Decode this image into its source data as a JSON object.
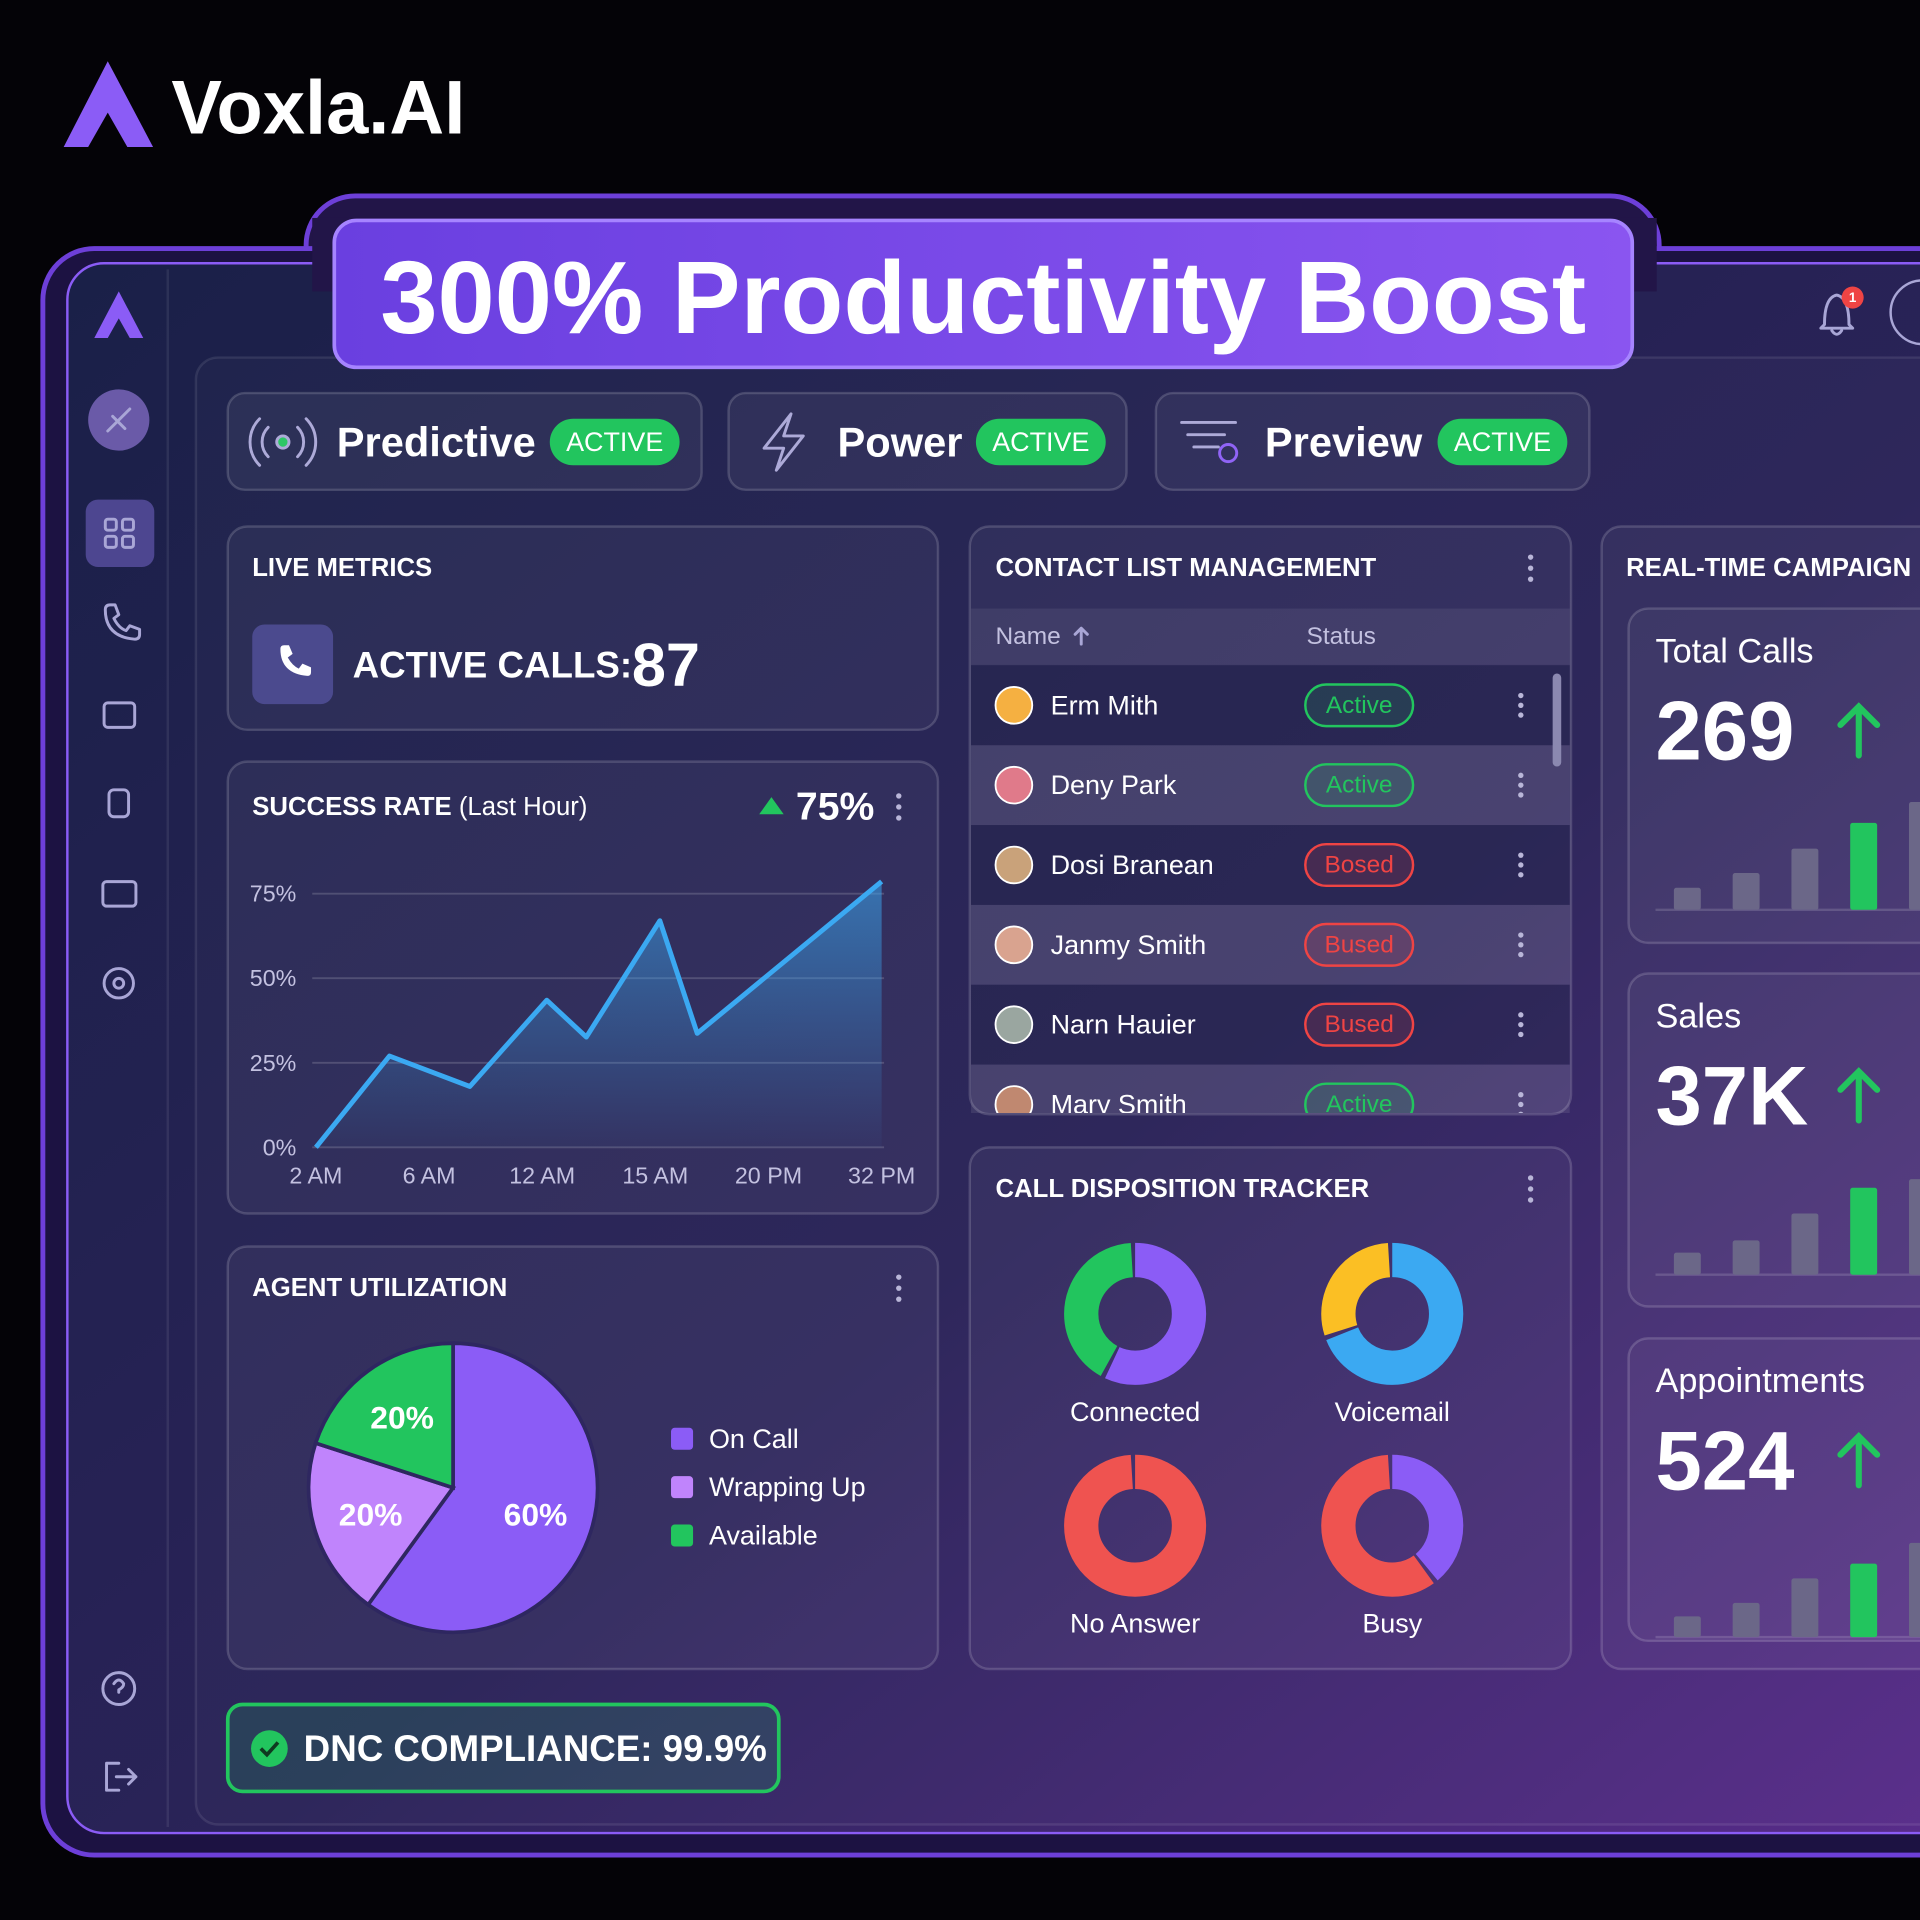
{
  "brand": "Voxla.AI",
  "banner": "300% Productivity Boost",
  "notifications": 1,
  "modes": [
    {
      "name": "Predictive",
      "status": "ACTIVE"
    },
    {
      "name": "Power",
      "status": "ACTIVE"
    },
    {
      "name": "Preview",
      "status": "ACTIVE"
    }
  ],
  "live_metrics": {
    "title": "LIVE METRICS",
    "label": "ACTIVE CALLS:",
    "value": 87
  },
  "contacts": {
    "title": "CONTACT LIST MANAGEMENT",
    "columns": [
      "Name",
      "Status"
    ],
    "rows": [
      {
        "name": "Erm Mith",
        "status": "Active",
        "color": "#22c55e"
      },
      {
        "name": "Deny Park",
        "status": "Active",
        "color": "#22c55e"
      },
      {
        "name": "Dosi Branean",
        "status": "Bosed",
        "color": "#ef4444"
      },
      {
        "name": "Janmy Smith",
        "status": "Bused",
        "color": "#ef4444"
      },
      {
        "name": "Narn Hauier",
        "status": "Bused",
        "color": "#ef4444"
      },
      {
        "name": "Mary Smith",
        "status": "Active",
        "color": "#22c55e"
      }
    ]
  },
  "campaign": {
    "title": "REAL-TIME CAMPAIGN",
    "stats": [
      {
        "label": "Total Calls",
        "value": 269,
        "ylim": [
          0,
          100
        ],
        "bars": [
          18,
          30,
          50,
          71,
          88
        ],
        "colors": [
          "#6b6788",
          "#6b6788",
          "#6b6788",
          "#22c55e",
          "#6b6788"
        ]
      },
      {
        "label": "Sales",
        "value": 37000,
        "value_label": "37K",
        "ylim": [
          0,
          100
        ],
        "bars": [
          18,
          28,
          50,
          71,
          78
        ],
        "colors": [
          "#6b6788",
          "#6b6788",
          "#6b6788",
          "#22c55e",
          "#6b6788"
        ]
      },
      {
        "label": "Appointments",
        "value": 524,
        "ylim": [
          0,
          100
        ],
        "bars": [
          17,
          28,
          48,
          60,
          77
        ],
        "colors": [
          "#6b6788",
          "#6b6788",
          "#6b6788",
          "#22c55e",
          "#6b6788"
        ]
      }
    ]
  },
  "dnc": "DNC COMPLIANCE: 99.9%",
  "chart_data": [
    {
      "type": "line",
      "title": "SUCCESS RATE",
      "subtitle": "(Last Hour)",
      "annotation": "75%",
      "x": [
        0,
        0.65,
        1.36,
        2.04,
        2.39,
        3.04,
        3.37,
        5
      ],
      "series": [
        {
          "color": "#3ba9f2",
          "values": [
            0,
            27,
            18,
            43.5,
            32.6,
            67,
            33.7,
            78.6
          ]
        }
      ],
      "xlim": [
        0,
        5
      ],
      "xticks": [
        {
          "value": 0,
          "label": "2 AM"
        },
        {
          "value": 1,
          "label": "6 AM"
        },
        {
          "value": 2,
          "label": "12 AM"
        },
        {
          "value": 3,
          "label": "15 AM"
        },
        {
          "value": 4,
          "label": "20 PM"
        },
        {
          "value": 5,
          "label": "32 PM"
        }
      ],
      "ylim": [
        0,
        80
      ],
      "yticks": [
        {
          "value": 0,
          "label": "0%"
        },
        {
          "value": 25,
          "label": "25%"
        },
        {
          "value": 50,
          "label": "50%"
        },
        {
          "value": 75,
          "label": "75%"
        }
      ],
      "grid": true
    },
    {
      "type": "pie",
      "title": "AGENT UTILIZATION",
      "categories": [
        "On Call",
        "Wrapping Up",
        "Available"
      ],
      "values": [
        60,
        20,
        20
      ],
      "value_labels": [
        "60%",
        "20%",
        "20%"
      ],
      "colors": [
        "#8b5cf6",
        "#c084fc",
        "#22c55e"
      ]
    },
    {
      "type": "donut",
      "title": "CALL DISPOSITION TRACKER",
      "items": [
        {
          "name": "Connected",
          "values": [
            58,
            42
          ],
          "colors": [
            "#8b5cf6",
            "#22c55e"
          ]
        },
        {
          "name": "Voicemail",
          "values": [
            70,
            30
          ],
          "colors": [
            "#3ba9f2",
            "#fbbf24"
          ]
        },
        {
          "name": "No Answer",
          "values": [
            100
          ],
          "colors": [
            "#ef5350"
          ]
        },
        {
          "name": "Busy",
          "values": [
            40,
            60
          ],
          "colors": [
            "#8b5cf6",
            "#ef5350"
          ]
        }
      ]
    }
  ]
}
